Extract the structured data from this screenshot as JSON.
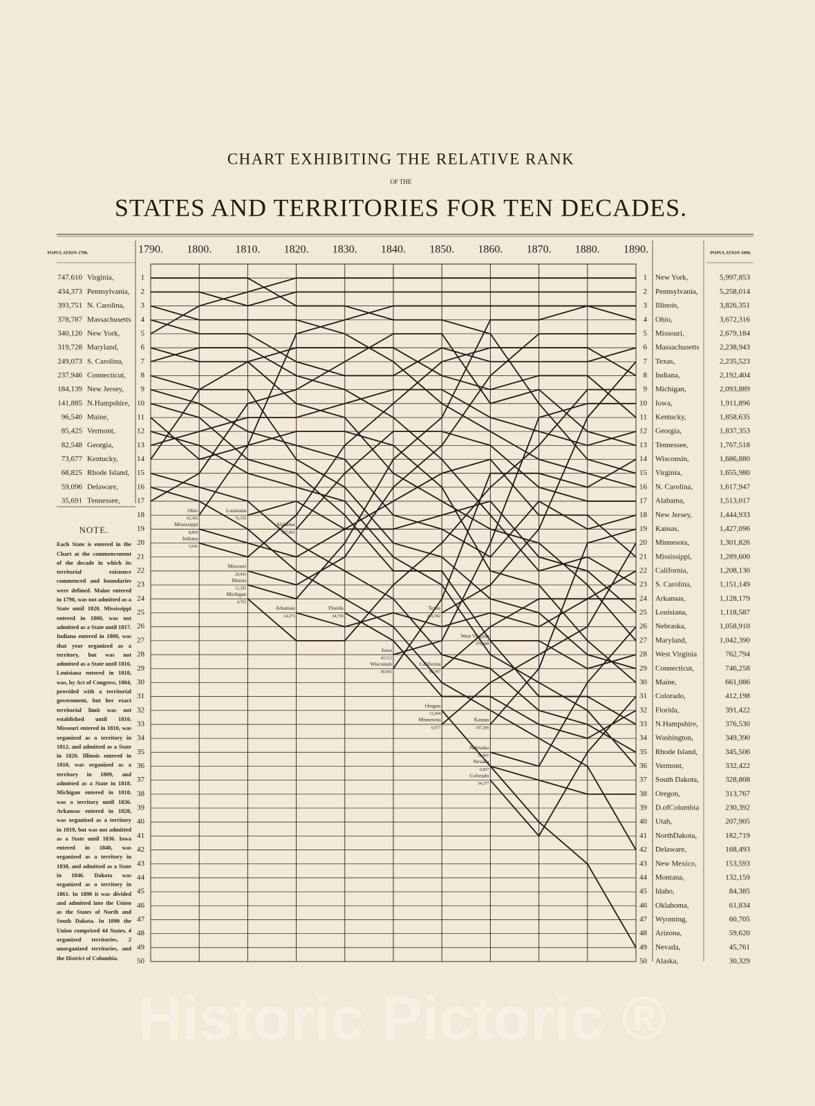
{
  "header": {
    "line1": "CHART EXHIBITING THE RELATIVE RANK",
    "line2": "OF THE",
    "line3": "STATES AND TERRITORIES FOR TEN DECADES."
  },
  "left_table": {
    "header": "POPULATION 1790.",
    "rows": [
      [
        "747,610",
        "Virginia,"
      ],
      [
        "434,373",
        "Pennsylvania,"
      ],
      [
        "393,751",
        "N. Carolina,"
      ],
      [
        "378,787",
        "Massachusetts"
      ],
      [
        "340,120",
        "New York,"
      ],
      [
        "319,728",
        "Maryland,"
      ],
      [
        "249,073",
        "S. Carolina,"
      ],
      [
        "237,946",
        "Connecticut,"
      ],
      [
        "184,139",
        "New Jersey,"
      ],
      [
        "141,885",
        "N.Hampshire,"
      ],
      [
        "96,540",
        "Maine,"
      ],
      [
        "85,425",
        "Vermont,"
      ],
      [
        "82,548",
        "Georgia,"
      ],
      [
        "73,677",
        "Kentucky,"
      ],
      [
        "68,825",
        "Rhode Island,"
      ],
      [
        "59,096",
        "Delaware,"
      ],
      [
        "35,691",
        "Tennessee,"
      ]
    ]
  },
  "note": {
    "heading": "NOTE.",
    "text": "Each State is entered in the Chart at the commencement of the decade in which its territorial existence commenced and boundaries were defined. Maine entered in 1790, was not admitted as a State until 1820. Mississippi entered in 1800, was not admitted as a State until 1817. Indiana entered in 1800, was that year organized as a territory, but was not admitted as a State until 1816. Louisiana entered in 1810, was, by Act of Congress, 1804, provided with a territorial government, but her exact territorial limit was not established until 1810. Missouri entered in 1810, was organized as a territory in 1812, and admitted as a State in 1820. Illinois entered in 1810, was organized as a territory in 1809, and admitted as a State in 1818. Michigan entered in 1810, was a territory until 1836. Arkansas entered in 1820, was organized as a territory in 1819, but was not admitted as a State until 1836. Iowa entered in 1840, was organized as a territory in 1838, and admitted as a State in 1846. Dakota was organized as a territory in 1861. In 1890 it was divided and admitted into the Union as the States of North and South Dakota. In 1890 the Union comprised 44 States, 4 organized territories, 2 unorganized territories, and the District of Columbia."
  },
  "right_table": {
    "header": "POPULATION 1890.",
    "rows": [
      [
        "New York,",
        "5,997,853"
      ],
      [
        "Pennsylvania,",
        "5,258,014"
      ],
      [
        "Illinois,",
        "3,826,351"
      ],
      [
        "Ohio,",
        "3,672,316"
      ],
      [
        "Missouri,",
        "2,679,184"
      ],
      [
        "Massachusetts",
        "2,238,943"
      ],
      [
        "Texas,",
        "2,235,523"
      ],
      [
        "Indiana,",
        "2,192,404"
      ],
      [
        "Michigan,",
        "2,093,889"
      ],
      [
        "Iowa,",
        "1,911,896"
      ],
      [
        "Kentucky,",
        "1,858,635"
      ],
      [
        "Georgia,",
        "1,837,353"
      ],
      [
        "Tennessee,",
        "1,767,518"
      ],
      [
        "Wisconsin,",
        "1,686,880"
      ],
      [
        "Virginia,",
        "1,655,980"
      ],
      [
        "N. Carolina,",
        "1,617,947"
      ],
      [
        "Alabama,",
        "1,513,017"
      ],
      [
        "New Jersey,",
        "1,444,933"
      ],
      [
        "Kansas,",
        "1,427,096"
      ],
      [
        "Minnesota,",
        "1,301,826"
      ],
      [
        "Mississippi,",
        "1,289,600"
      ],
      [
        "California,",
        "1,208,130"
      ],
      [
        "S. Carolina,",
        "1,151,149"
      ],
      [
        "Arkansas,",
        "1,128,179"
      ],
      [
        "Louisiana,",
        "1,118,587"
      ],
      [
        "Nebraska,",
        "1,058,910"
      ],
      [
        "Maryland,",
        "1,042,390"
      ],
      [
        "West Virginia",
        "762,794"
      ],
      [
        "Connecticut,",
        "746,258"
      ],
      [
        "Maine,",
        "661,086"
      ],
      [
        "Colorado,",
        "412,198"
      ],
      [
        "Florida,",
        "391,422"
      ],
      [
        "N.Hampshire,",
        "376,530"
      ],
      [
        "Washington,",
        "349,390"
      ],
      [
        "Rhode Island,",
        "345,506"
      ],
      [
        "Vermont,",
        "332,422"
      ],
      [
        "South Dakota,",
        "328,808"
      ],
      [
        "Oregon,",
        "313,767"
      ],
      [
        "D.ofColumbia",
        "230,392"
      ],
      [
        "Utah,",
        "207,905"
      ],
      [
        "NorthDakota,",
        "182,719"
      ],
      [
        "Delaware,",
        "168,493"
      ],
      [
        "New Mexico,",
        "153,593"
      ],
      [
        "Montana,",
        "132,159"
      ],
      [
        "Idaho,",
        "84,385"
      ],
      [
        "Oklahoma,",
        "61,834"
      ],
      [
        "Wyoming,",
        "60,705"
      ],
      [
        "Arizona,",
        "59,620"
      ],
      [
        "Nevada,",
        "45,761"
      ],
      [
        "Alaska,",
        "30,329"
      ]
    ]
  },
  "watermark": "Historic Pictoric ®",
  "chart_data": {
    "type": "line",
    "color": "#1e1b18",
    "y_reversed": true,
    "grid": true,
    "x": [
      1790,
      1800,
      1810,
      1820,
      1830,
      1840,
      1850,
      1860,
      1870,
      1880,
      1890
    ],
    "xlim": [
      1790,
      1890
    ],
    "xticks": [
      {
        "value": 1790,
        "label": "1790."
      },
      {
        "value": 1800,
        "label": "1800."
      },
      {
        "value": 1810,
        "label": "1810."
      },
      {
        "value": 1820,
        "label": "1820."
      },
      {
        "value": 1830,
        "label": "1830."
      },
      {
        "value": 1840,
        "label": "1840."
      },
      {
        "value": 1850,
        "label": "1850."
      },
      {
        "value": 1860,
        "label": "1860."
      },
      {
        "value": 1870,
        "label": "1870."
      },
      {
        "value": 1880,
        "label": "1880."
      },
      {
        "value": 1890,
        "label": "1890."
      }
    ],
    "ylim": [
      0,
      50
    ],
    "yticks": [
      1,
      2,
      3,
      4,
      5,
      6,
      7,
      8,
      9,
      10,
      11,
      12,
      13,
      14,
      15,
      16,
      17,
      18,
      19,
      20,
      21,
      22,
      23,
      24,
      25,
      26,
      27,
      28,
      29,
      30,
      31,
      32,
      33,
      34,
      35,
      36,
      37,
      38,
      39,
      40,
      41,
      42,
      43,
      44,
      45,
      46,
      47,
      48,
      49,
      50
    ],
    "series": [
      {
        "values": [
          5,
          3,
          2,
          1,
          1,
          1,
          1,
          1,
          1,
          1,
          1
        ]
      },
      {
        "values": [
          2,
          2,
          3,
          2,
          2,
          2,
          2,
          2,
          2,
          2,
          2
        ]
      },
      {
        "values": [
          1,
          1,
          1,
          3,
          3,
          4,
          4,
          5,
          10,
          14,
          15
        ]
      },
      {
        "values": [
          3,
          4,
          4,
          4,
          5,
          7,
          10,
          12,
          14,
          15,
          16
        ]
      },
      {
        "values": [
          4,
          5,
          5,
          7,
          8,
          8,
          6,
          7,
          7,
          7,
          6
        ]
      },
      {
        "values": [
          6,
          7,
          7,
          10,
          11,
          15,
          17,
          19,
          20,
          23,
          27
        ]
      },
      {
        "values": [
          7,
          6,
          6,
          8,
          9,
          11,
          14,
          18,
          22,
          21,
          23
        ]
      },
      {
        "values": [
          8,
          9,
          9,
          14,
          16,
          20,
          21,
          24,
          25,
          28,
          29
        ]
      },
      {
        "values": [
          9,
          10,
          12,
          13,
          14,
          18,
          19,
          21,
          17,
          19,
          18
        ]
      },
      {
        "values": [
          10,
          11,
          14,
          15,
          18,
          22,
          22,
          27,
          31,
          31,
          33
        ]
      },
      {
        "values": [
          11,
          14,
          13,
          12,
          12,
          13,
          16,
          22,
          23,
          27,
          30
        ]
      },
      {
        "values": [
          12,
          13,
          15,
          16,
          17,
          21,
          23,
          28,
          30,
          32,
          36
        ]
      },
      {
        "values": [
          13,
          12,
          11,
          11,
          10,
          9,
          9,
          11,
          12,
          13,
          12
        ]
      },
      {
        "values": [
          14,
          9,
          7,
          6,
          6,
          6,
          8,
          9,
          8,
          8,
          11
        ]
      },
      {
        "values": [
          15,
          16,
          17,
          20,
          22,
          24,
          28,
          29,
          32,
          33,
          35
        ]
      },
      {
        "values": [
          16,
          17,
          19,
          22,
          24,
          26,
          30,
          32,
          34,
          36,
          42
        ]
      },
      {
        "values": [
          17,
          15,
          10,
          9,
          7,
          5,
          5,
          10,
          9,
          12,
          13
        ]
      },
      {
        "label": "Ohio",
        "label_value": "45,365",
        "values": [
          null,
          18,
          13,
          5,
          4,
          3,
          3,
          3,
          3,
          3,
          4
        ]
      },
      {
        "label": "Indiana",
        "label_value": "5,641",
        "values": [
          null,
          20,
          21,
          18,
          13,
          10,
          7,
          6,
          6,
          6,
          8
        ]
      },
      {
        "label": "Mississippi",
        "label_value": "8,850",
        "values": [
          null,
          19,
          20,
          21,
          19,
          17,
          15,
          14,
          18,
          18,
          21
        ]
      },
      {
        "label": "Louisiana",
        "label_value": "76,556",
        "values": [
          null,
          null,
          18,
          17,
          19,
          19,
          18,
          17,
          21,
          22,
          25
        ]
      },
      {
        "label": "Alabama",
        "label_value": "127,901",
        "values": [
          null,
          null,
          null,
          19,
          15,
          12,
          12,
          13,
          16,
          17,
          17
        ]
      },
      {
        "label": "Missouri",
        "label_value": "20,845",
        "values": [
          null,
          null,
          22,
          23,
          21,
          16,
          13,
          8,
          5,
          5,
          5
        ]
      },
      {
        "label": "Illinois",
        "label_value": "12,282",
        "values": [
          null,
          null,
          23,
          24,
          20,
          14,
          11,
          4,
          4,
          3,
          3
        ]
      },
      {
        "label": "Michigan",
        "label_value": "4,762",
        "values": [
          null,
          null,
          24,
          27,
          27,
          23,
          20,
          16,
          13,
          9,
          9
        ]
      },
      {
        "label": "Arkansas",
        "label_value": "14,273",
        "values": [
          null,
          null,
          null,
          25,
          26,
          25,
          26,
          25,
          26,
          24,
          24
        ]
      },
      {
        "label": "Florida",
        "label_value": "34,730",
        "values": [
          null,
          null,
          null,
          null,
          25,
          27,
          31,
          31,
          33,
          34,
          32
        ]
      },
      {
        "label": "Iowa",
        "label_value": "43,112",
        "values": [
          null,
          null,
          null,
          null,
          null,
          28,
          27,
          20,
          11,
          10,
          10
        ]
      },
      {
        "label": "Wisconsin",
        "label_value": "30,945",
        "values": [
          null,
          null,
          null,
          null,
          null,
          29,
          24,
          15,
          15,
          16,
          14
        ]
      },
      {
        "label": "Texas",
        "label_value": "212,592",
        "values": [
          null,
          null,
          null,
          null,
          null,
          null,
          25,
          23,
          19,
          11,
          7
        ]
      },
      {
        "label": "California",
        "label_value": "92,597",
        "values": [
          null,
          null,
          null,
          null,
          null,
          null,
          29,
          26,
          24,
          24,
          22
        ]
      },
      {
        "label": "Oregon",
        "label_value": "13,294",
        "values": [
          null,
          null,
          null,
          null,
          null,
          null,
          32,
          36,
          37,
          38,
          38
        ]
      },
      {
        "label": "Minnesota",
        "label_value": "6,077",
        "values": [
          null,
          null,
          null,
          null,
          null,
          null,
          33,
          30,
          28,
          26,
          20
        ]
      },
      {
        "label": "Kansas",
        "label_value": "107,206",
        "values": [
          null,
          null,
          null,
          null,
          null,
          null,
          null,
          33,
          29,
          20,
          19
        ]
      },
      {
        "label": "West Virginia",
        "label_value": "376,688",
        "values": [
          null,
          null,
          null,
          null,
          null,
          null,
          null,
          27,
          27,
          29,
          28
        ]
      },
      {
        "label": "Nebraska",
        "label_value": "28,841",
        "values": [
          null,
          null,
          null,
          null,
          null,
          null,
          null,
          35,
          36,
          30,
          26
        ]
      },
      {
        "label": "Nevada",
        "label_value": "6,857",
        "values": [
          null,
          null,
          null,
          null,
          null,
          null,
          null,
          36,
          40,
          43,
          49
        ]
      },
      {
        "label": "Colorado",
        "label_value": "34,277",
        "values": [
          null,
          null,
          null,
          null,
          null,
          null,
          null,
          37,
          41,
          35,
          31
        ]
      }
    ]
  }
}
